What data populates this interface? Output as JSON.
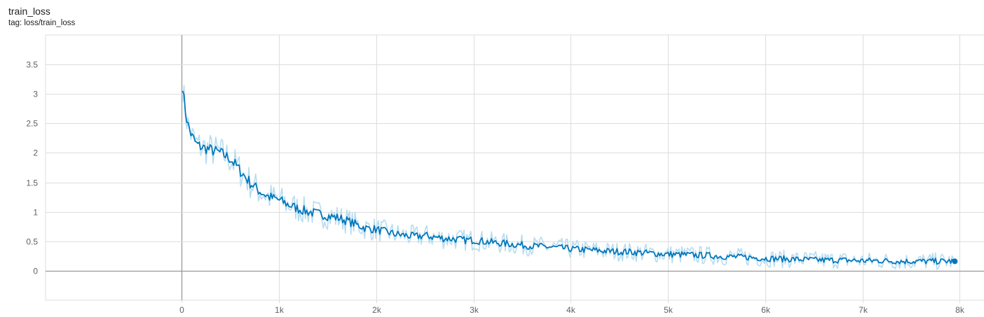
{
  "header": {
    "title": "train_loss",
    "tag_label": "tag: loss/train_loss"
  },
  "colors": {
    "smoothed": "#0077bb",
    "raw": "#b8dcf0",
    "grid": "#dddddd",
    "zero_axis": "#999999"
  },
  "chart_data": {
    "type": "line",
    "title": "train_loss",
    "xlabel": "",
    "ylabel": "",
    "xlim": [
      -1400,
      8250
    ],
    "ylim": [
      -0.5,
      4.0
    ],
    "x_ticks": [
      0,
      1000,
      2000,
      3000,
      4000,
      5000,
      6000,
      7000,
      8000
    ],
    "x_tick_labels": [
      "0",
      "1k",
      "2k",
      "3k",
      "4k",
      "5k",
      "6k",
      "7k",
      "8k"
    ],
    "y_ticks": [
      0,
      0.5,
      1,
      1.5,
      2,
      2.5,
      3,
      3.5
    ],
    "y_tick_labels": [
      "0",
      "0.5",
      "1",
      "1.5",
      "2",
      "2.5",
      "3",
      "3.5"
    ],
    "grid": true,
    "series": [
      {
        "style": "smoothed",
        "x": [
          10,
          30,
          60,
          100,
          150,
          200,
          300,
          400,
          500,
          600,
          700,
          800,
          900,
          1000,
          1100,
          1200,
          1300,
          1400,
          1500,
          1600,
          1700,
          1800,
          1900,
          2000,
          2100,
          2200,
          2300,
          2400,
          2500,
          2600,
          2700,
          2800,
          2900,
          3000,
          3200,
          3400,
          3600,
          3800,
          4000,
          4200,
          4400,
          4600,
          4800,
          5000,
          5200,
          5400,
          5600,
          5800,
          6000,
          6200,
          6400,
          6600,
          6800,
          7000,
          7200,
          7400,
          7600,
          7800,
          7950
        ],
        "y": [
          3.15,
          2.8,
          2.5,
          2.3,
          2.15,
          2.1,
          2.05,
          2.0,
          1.9,
          1.7,
          1.5,
          1.35,
          1.25,
          1.2,
          1.12,
          1.05,
          1.0,
          0.97,
          0.93,
          0.9,
          0.85,
          0.78,
          0.72,
          0.7,
          0.66,
          0.62,
          0.6,
          0.58,
          0.6,
          0.57,
          0.55,
          0.54,
          0.52,
          0.52,
          0.48,
          0.45,
          0.42,
          0.4,
          0.37,
          0.35,
          0.33,
          0.32,
          0.3,
          0.28,
          0.27,
          0.26,
          0.24,
          0.23,
          0.21,
          0.2,
          0.19,
          0.18,
          0.18,
          0.17,
          0.17,
          0.16,
          0.16,
          0.16,
          0.16
        ]
      }
    ]
  }
}
